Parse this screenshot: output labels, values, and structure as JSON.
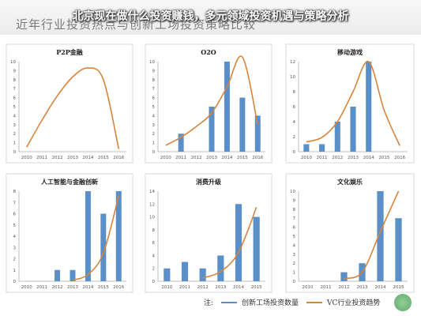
{
  "page": {
    "title": "北京现在做什么投资赚钱，多元领域投资机遇与策略分析",
    "heading": "近年行业投资热点与创新工场投资策略比较"
  },
  "colors": {
    "bar": "#5b8fc7",
    "line": "#d9843b",
    "axis": "#bfbfbf",
    "text": "#555555"
  },
  "legend": {
    "prefix": "注:",
    "bar_label": "创新工场投资数量",
    "line_label": "VC行业投资趋势"
  },
  "chart_data": [
    {
      "type": "bar",
      "title": "P2P金融",
      "categories": [
        "2010",
        "2011",
        "2012",
        "2013",
        "2014",
        "2015",
        "2016"
      ],
      "yticks": [
        "0",
        "1",
        "2",
        "3",
        "4",
        "5",
        "6",
        "7",
        "8",
        "9",
        "10"
      ],
      "ylim": [
        0,
        10
      ],
      "bar_values": [
        null,
        null,
        null,
        null,
        null,
        null,
        null
      ],
      "trend_values": [
        0.5,
        3.5,
        6.2,
        8.3,
        9.3,
        8.0,
        0.3
      ]
    },
    {
      "type": "bar",
      "title": "O2O",
      "categories": [
        "2010",
        "2011",
        "2012",
        "2013",
        "2014",
        "2015",
        "2016"
      ],
      "yticks": [
        "0",
        "1",
        "2",
        "3",
        "4",
        "5",
        "6",
        "7",
        "8",
        "9",
        "10"
      ],
      "ylim": [
        0,
        10
      ],
      "bar_values": [
        null,
        2,
        null,
        5,
        10,
        6,
        4
      ],
      "trend_values": [
        0.7,
        1.6,
        2.8,
        4.3,
        7.2,
        10.5,
        3.0
      ]
    },
    {
      "type": "bar",
      "title": "移动游戏",
      "categories": [
        "2010",
        "2011",
        "2012",
        "2013",
        "2014",
        "2015",
        "2016"
      ],
      "yticks": [
        "0",
        "2",
        "4",
        "6",
        "8",
        "10",
        "12"
      ],
      "ylim": [
        0,
        12
      ],
      "bar_values": [
        1,
        1,
        4,
        6,
        12,
        null,
        null
      ],
      "trend_values": [
        1.3,
        1.9,
        4.0,
        8.0,
        12.0,
        5.5,
        0.8
      ]
    },
    {
      "type": "bar",
      "title": "人工智能与金融创新",
      "categories": [
        "2010",
        "2011",
        "2012",
        "2013",
        "2014",
        "2015",
        "2016"
      ],
      "yticks": [
        "0",
        "1",
        "2",
        "3",
        "4",
        "5",
        "6",
        "7",
        "8"
      ],
      "ylim": [
        0,
        8
      ],
      "bar_values": [
        null,
        null,
        1,
        1,
        8,
        6,
        8
      ],
      "trend_values": [
        null,
        null,
        null,
        0.1,
        0.6,
        2.5,
        7.6
      ]
    },
    {
      "type": "bar",
      "title": "消费升级",
      "categories": [
        "2010",
        "2011",
        "2012",
        "2013",
        "2014",
        "2015"
      ],
      "yticks": [
        "0",
        "2",
        "4",
        "6",
        "8",
        "10",
        "12",
        "14"
      ],
      "ylim": [
        0,
        14
      ],
      "bar_values": [
        2,
        3,
        2,
        4,
        12,
        10
      ],
      "trend_values": [
        null,
        null,
        0.5,
        1.5,
        4.5,
        11.5
      ]
    },
    {
      "type": "bar",
      "title": "文化娱乐",
      "categories": [
        "2010",
        "2011",
        "2012",
        "2013",
        "2014",
        "2015"
      ],
      "yticks": [
        "0",
        "1",
        "2",
        "3",
        "4",
        "5",
        "6",
        "7",
        "8",
        "9",
        "10"
      ],
      "ylim": [
        0,
        10
      ],
      "bar_values": [
        null,
        null,
        1,
        2,
        10,
        7
      ],
      "trend_values": [
        null,
        null,
        0.3,
        1.0,
        5.5,
        10.0
      ]
    }
  ]
}
